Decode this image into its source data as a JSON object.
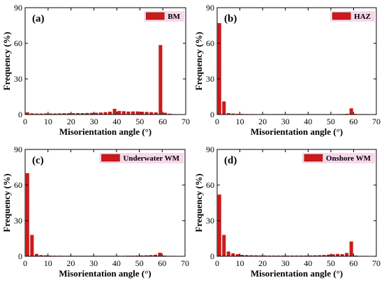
{
  "chart_data": [
    {
      "type": "bar",
      "panel_label": "(a)",
      "legend": "BM",
      "xlabel": "Misorientation angle (°)",
      "ylabel": "Frequency (%)",
      "xlim": [
        0,
        70
      ],
      "ylim": [
        0,
        90
      ],
      "xticks": [
        "0",
        "10",
        "20",
        "30",
        "40",
        "50",
        "60",
        "70"
      ],
      "yticks": [
        "0",
        "30",
        "60",
        "90"
      ],
      "bar_color": "#cc1a1a",
      "x": [
        1,
        3,
        5,
        7,
        9,
        11,
        13,
        15,
        17,
        19,
        21,
        23,
        25,
        27,
        29,
        31,
        33,
        35,
        37,
        39,
        41,
        43,
        45,
        47,
        49,
        51,
        53,
        55,
        57,
        59,
        61,
        63,
        65
      ],
      "values": [
        1.8,
        1.0,
        0.8,
        0.8,
        0.9,
        0.9,
        0.9,
        1.0,
        1.1,
        1.1,
        1.1,
        1.2,
        1.2,
        1.3,
        1.4,
        1.5,
        1.7,
        2.0,
        2.4,
        4.8,
        3.0,
        2.8,
        2.5,
        2.6,
        2.6,
        2.4,
        2.2,
        2.0,
        1.8,
        58.5,
        1.5,
        0.7,
        0.3
      ]
    },
    {
      "type": "bar",
      "panel_label": "(b)",
      "legend": "HAZ",
      "xlabel": "Misorientation angle (°)",
      "ylabel": "Frequency (%)",
      "xlim": [
        0,
        70
      ],
      "ylim": [
        0,
        90
      ],
      "xticks": [
        "0",
        "10",
        "20",
        "30",
        "40",
        "50",
        "60",
        "70"
      ],
      "yticks": [
        "0",
        "30",
        "60",
        "90"
      ],
      "bar_color": "#cc1a1a",
      "x": [
        1,
        3,
        5,
        7,
        9,
        11,
        13,
        15,
        17,
        19,
        21,
        23,
        25,
        27,
        29,
        31,
        33,
        35,
        37,
        39,
        41,
        43,
        45,
        47,
        49,
        51,
        53,
        55,
        57,
        59,
        61,
        63,
        65
      ],
      "values": [
        77.0,
        11.0,
        1.2,
        0.8,
        0.6,
        0.5,
        0.4,
        0.4,
        0.3,
        0.3,
        0.3,
        0.3,
        0.3,
        0.3,
        0.3,
        0.3,
        0.3,
        0.3,
        0.3,
        0.3,
        0.3,
        0.3,
        0.3,
        0.3,
        0.3,
        0.3,
        0.3,
        0.4,
        0.6,
        5.2,
        0.5,
        0.2,
        0.1
      ]
    },
    {
      "type": "bar",
      "panel_label": "(c)",
      "legend": "Underwater WM",
      "xlabel": "Misorientation angle (°)",
      "ylabel": "Frequency (%)",
      "xlim": [
        0,
        70
      ],
      "ylim": [
        0,
        90
      ],
      "xticks": [
        "0",
        "10",
        "20",
        "30",
        "40",
        "50",
        "60",
        "70"
      ],
      "yticks": [
        "0",
        "30",
        "60",
        "90"
      ],
      "bar_color": "#cc1a1a",
      "x": [
        1,
        3,
        5,
        7,
        9,
        11,
        13,
        15,
        17,
        19,
        21,
        23,
        25,
        27,
        29,
        31,
        33,
        35,
        37,
        39,
        41,
        43,
        45,
        47,
        49,
        51,
        53,
        55,
        57,
        59,
        61,
        63,
        65
      ],
      "values": [
        70.0,
        18.0,
        2.0,
        1.0,
        0.8,
        0.6,
        0.5,
        0.5,
        0.4,
        0.4,
        0.4,
        0.4,
        0.4,
        0.4,
        0.4,
        0.4,
        0.4,
        0.4,
        0.4,
        0.4,
        0.4,
        0.4,
        0.5,
        0.5,
        0.6,
        0.7,
        0.8,
        1.0,
        1.3,
        3.0,
        0.6,
        0.2,
        0.1
      ]
    },
    {
      "type": "bar",
      "panel_label": "(d)",
      "legend": "Onshore WM",
      "xlabel": "Misorientation angle (°)",
      "ylabel": "Frequency (%)",
      "xlim": [
        0,
        70
      ],
      "ylim": [
        0,
        90
      ],
      "xticks": [
        "0",
        "10",
        "20",
        "30",
        "40",
        "50",
        "60",
        "70"
      ],
      "yticks": [
        "0",
        "30",
        "60",
        "90"
      ],
      "bar_color": "#cc1a1a",
      "x": [
        1,
        3,
        5,
        7,
        9,
        11,
        13,
        15,
        17,
        19,
        21,
        23,
        25,
        27,
        29,
        31,
        33,
        35,
        37,
        39,
        41,
        43,
        45,
        47,
        49,
        51,
        53,
        55,
        57,
        59,
        61,
        63,
        65
      ],
      "values": [
        52.0,
        18.0,
        4.0,
        2.5,
        1.8,
        1.2,
        1.0,
        0.9,
        0.8,
        0.7,
        0.7,
        0.6,
        0.6,
        0.6,
        0.6,
        0.6,
        0.6,
        0.6,
        0.6,
        0.6,
        0.7,
        0.8,
        0.9,
        1.1,
        1.4,
        1.7,
        2.0,
        1.8,
        2.8,
        12.5,
        0.6,
        0.2,
        0.1
      ]
    }
  ]
}
